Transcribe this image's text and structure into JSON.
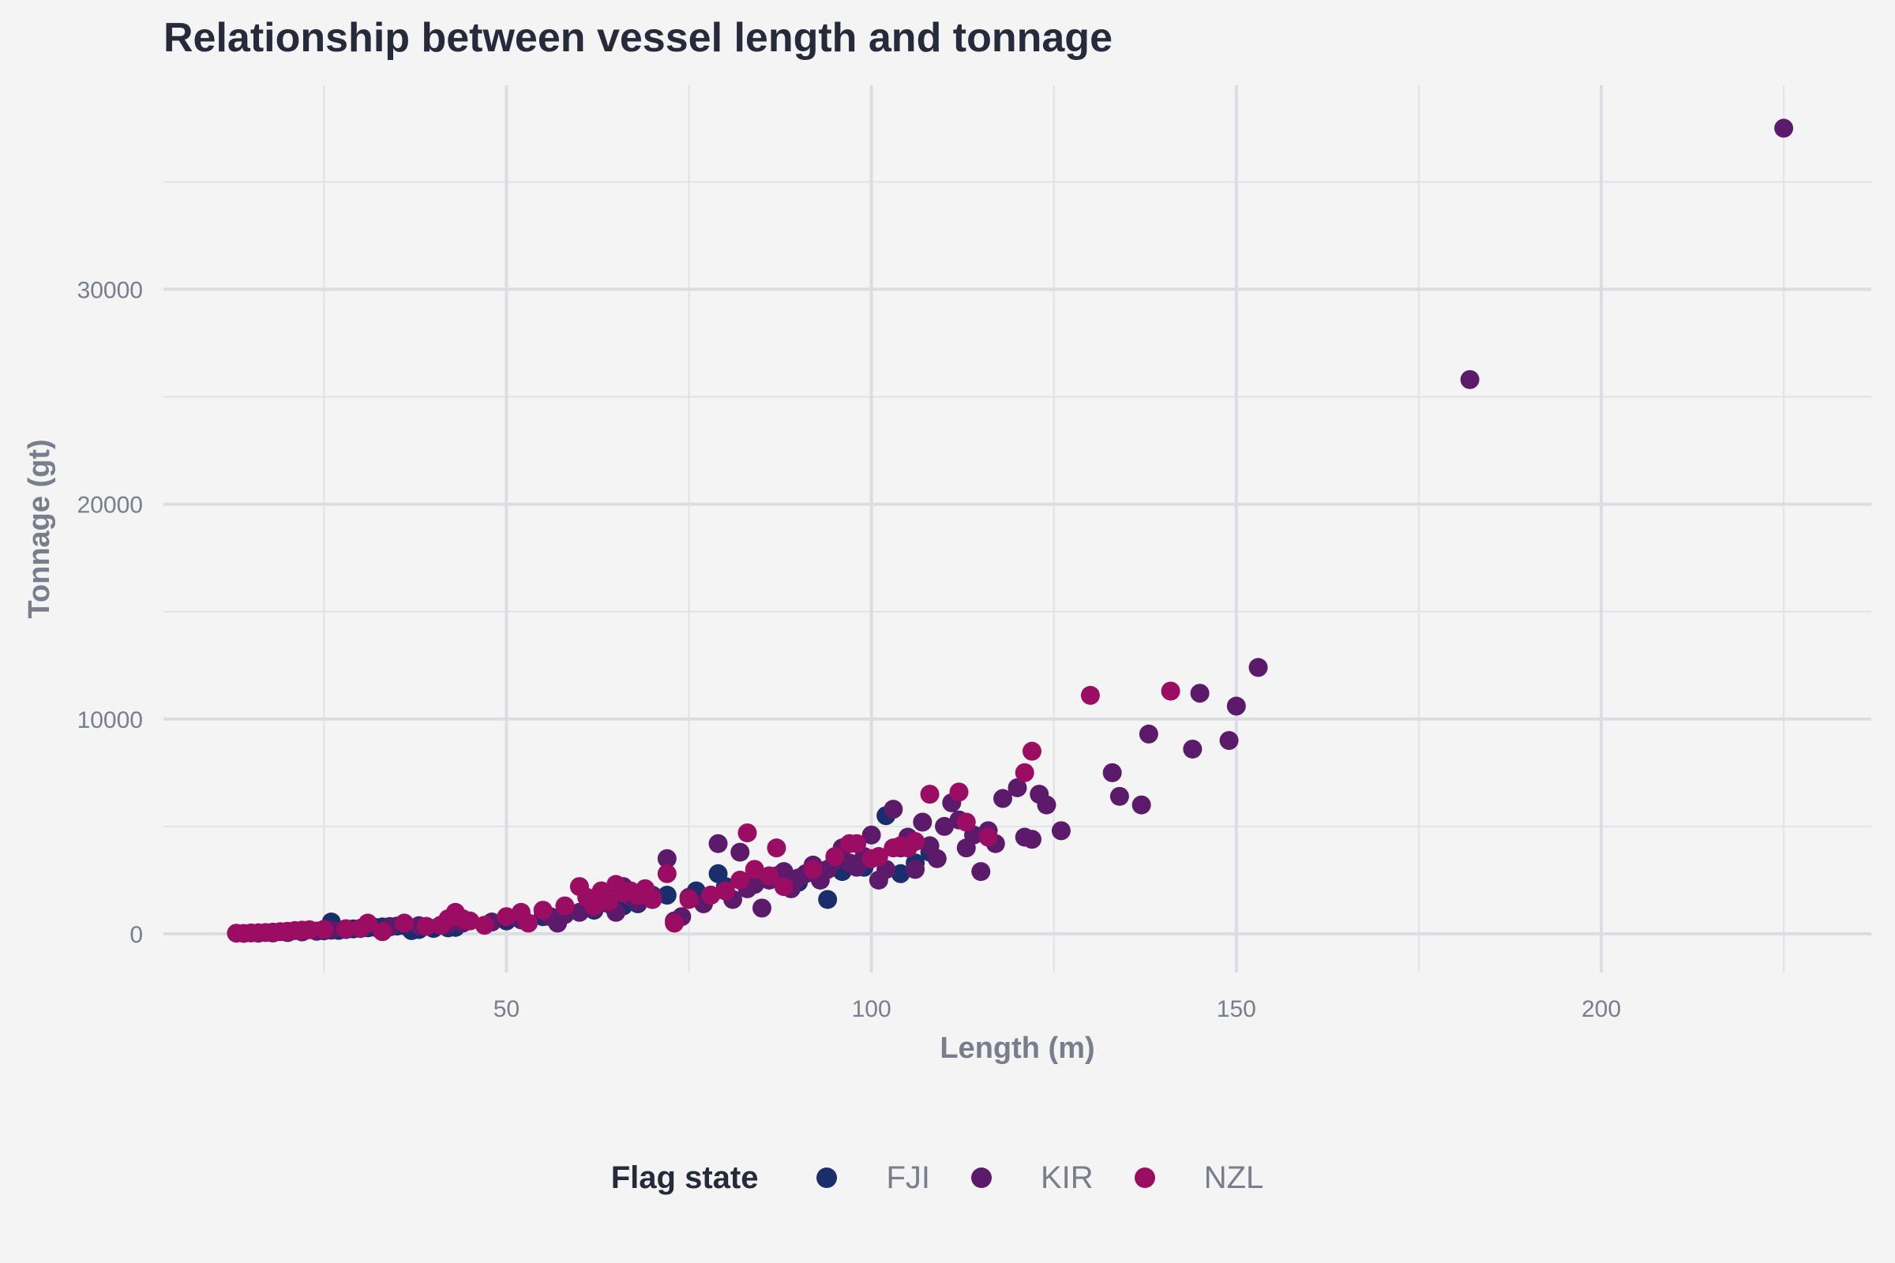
{
  "chart_data": {
    "type": "scatter",
    "title": "Relationship between vessel length and tonnage",
    "xlabel": "Length (m)",
    "ylabel": "Tonnage (gt)",
    "xlim": [
      3,
      237
    ],
    "ylim": [
      -1800,
      39500
    ],
    "x_ticks": [
      50,
      100,
      150,
      200
    ],
    "y_ticks": [
      0,
      10000,
      20000,
      30000
    ],
    "grid": true,
    "legend": {
      "title": "Flag state",
      "position": "bottom"
    },
    "series": [
      {
        "name": "FJI",
        "color": "#1a2e6b",
        "points": [
          [
            16,
            30
          ],
          [
            18,
            40
          ],
          [
            20,
            60
          ],
          [
            22,
            90
          ],
          [
            24,
            120
          ],
          [
            25,
            140
          ],
          [
            26,
            550
          ],
          [
            27,
            160
          ],
          [
            28,
            200
          ],
          [
            29,
            230
          ],
          [
            30,
            250
          ],
          [
            31,
            280
          ],
          [
            32,
            300
          ],
          [
            33,
            320
          ],
          [
            34,
            340
          ],
          [
            35,
            360
          ],
          [
            36,
            380
          ],
          [
            37,
            150
          ],
          [
            38,
            200
          ],
          [
            40,
            250
          ],
          [
            42,
            280
          ],
          [
            43,
            300
          ],
          [
            50,
            600
          ],
          [
            52,
            700
          ],
          [
            55,
            800
          ],
          [
            58,
            900
          ],
          [
            62,
            1100
          ],
          [
            66,
            1300
          ],
          [
            68,
            1400
          ],
          [
            70,
            1600
          ],
          [
            72,
            1800
          ],
          [
            76,
            2000
          ],
          [
            79,
            2800
          ],
          [
            80,
            2200
          ],
          [
            84,
            2500
          ],
          [
            87,
            2600
          ],
          [
            90,
            2400
          ],
          [
            94,
            1600
          ],
          [
            96,
            2900
          ],
          [
            99,
            3100
          ],
          [
            102,
            5500
          ],
          [
            104,
            2800
          ],
          [
            106,
            3300
          ],
          [
            108,
            3800
          ]
        ]
      },
      {
        "name": "KIR",
        "color": "#5c1a6b",
        "points": [
          [
            18,
            50
          ],
          [
            20,
            70
          ],
          [
            22,
            100
          ],
          [
            24,
            130
          ],
          [
            26,
            170
          ],
          [
            28,
            210
          ],
          [
            30,
            250
          ],
          [
            34,
            320
          ],
          [
            38,
            380
          ],
          [
            42,
            450
          ],
          [
            44,
            500
          ],
          [
            48,
            550
          ],
          [
            52,
            650
          ],
          [
            56,
            800
          ],
          [
            57,
            500
          ],
          [
            58,
            950
          ],
          [
            60,
            1000
          ],
          [
            62,
            1200
          ],
          [
            64,
            1400
          ],
          [
            65,
            1000
          ],
          [
            66,
            2200
          ],
          [
            67,
            1700
          ],
          [
            68,
            1500
          ],
          [
            70,
            1800
          ],
          [
            72,
            3500
          ],
          [
            73,
            600
          ],
          [
            74,
            800
          ],
          [
            75,
            1700
          ],
          [
            77,
            1400
          ],
          [
            78,
            1800
          ],
          [
            79,
            4200
          ],
          [
            80,
            2000
          ],
          [
            81,
            1600
          ],
          [
            82,
            3800
          ],
          [
            83,
            2100
          ],
          [
            84,
            2300
          ],
          [
            85,
            1200
          ],
          [
            86,
            2500
          ],
          [
            87,
            2700
          ],
          [
            88,
            2900
          ],
          [
            89,
            2100
          ],
          [
            90,
            2600
          ],
          [
            91,
            2800
          ],
          [
            92,
            3200
          ],
          [
            93,
            2500
          ],
          [
            94,
            3000
          ],
          [
            95,
            3400
          ],
          [
            96,
            4000
          ],
          [
            97,
            3300
          ],
          [
            98,
            3100
          ],
          [
            99,
            3600
          ],
          [
            100,
            4600
          ],
          [
            101,
            2500
          ],
          [
            102,
            3000
          ],
          [
            103,
            5800
          ],
          [
            104,
            4000
          ],
          [
            105,
            4500
          ],
          [
            106,
            3000
          ],
          [
            107,
            5200
          ],
          [
            108,
            4100
          ],
          [
            109,
            3500
          ],
          [
            110,
            5000
          ],
          [
            111,
            6100
          ],
          [
            112,
            5300
          ],
          [
            113,
            4000
          ],
          [
            114,
            4600
          ],
          [
            115,
            2900
          ],
          [
            116,
            4800
          ],
          [
            117,
            4200
          ],
          [
            118,
            6300
          ],
          [
            120,
            6800
          ],
          [
            121,
            4500
          ],
          [
            122,
            4400
          ],
          [
            123,
            6500
          ],
          [
            124,
            6000
          ],
          [
            126,
            4800
          ],
          [
            133,
            7500
          ],
          [
            134,
            6400
          ],
          [
            137,
            6000
          ],
          [
            138,
            9300
          ],
          [
            144,
            8600
          ],
          [
            145,
            11200
          ],
          [
            149,
            9000
          ],
          [
            150,
            10600
          ],
          [
            153,
            12400
          ],
          [
            182,
            25800
          ],
          [
            225,
            37500
          ]
        ]
      },
      {
        "name": "NZL",
        "color": "#9b0d62",
        "points": [
          [
            13,
            30
          ],
          [
            14,
            20
          ],
          [
            15,
            40
          ],
          [
            16,
            50
          ],
          [
            17,
            60
          ],
          [
            18,
            80
          ],
          [
            19,
            100
          ],
          [
            20,
            120
          ],
          [
            21,
            150
          ],
          [
            22,
            170
          ],
          [
            23,
            190
          ],
          [
            25,
            210
          ],
          [
            28,
            240
          ],
          [
            30,
            260
          ],
          [
            31,
            500
          ],
          [
            33,
            100
          ],
          [
            36,
            500
          ],
          [
            39,
            350
          ],
          [
            41,
            400
          ],
          [
            42,
            700
          ],
          [
            43,
            1000
          ],
          [
            44,
            700
          ],
          [
            45,
            600
          ],
          [
            47,
            400
          ],
          [
            50,
            800
          ],
          [
            52,
            1000
          ],
          [
            53,
            500
          ],
          [
            55,
            1100
          ],
          [
            58,
            1300
          ],
          [
            60,
            2200
          ],
          [
            61,
            1700
          ],
          [
            62,
            1300
          ],
          [
            63,
            2000
          ],
          [
            64,
            1500
          ],
          [
            65,
            2300
          ],
          [
            66,
            1900
          ],
          [
            67,
            2000
          ],
          [
            68,
            1800
          ],
          [
            69,
            2100
          ],
          [
            70,
            1600
          ],
          [
            72,
            2800
          ],
          [
            73,
            500
          ],
          [
            75,
            1600
          ],
          [
            78,
            1800
          ],
          [
            80,
            2000
          ],
          [
            82,
            2500
          ],
          [
            83,
            4700
          ],
          [
            84,
            3000
          ],
          [
            86,
            2700
          ],
          [
            87,
            4000
          ],
          [
            88,
            2200
          ],
          [
            92,
            3000
          ],
          [
            95,
            3600
          ],
          [
            97,
            4200
          ],
          [
            98,
            4200
          ],
          [
            100,
            3500
          ],
          [
            101,
            3600
          ],
          [
            103,
            4000
          ],
          [
            104,
            4100
          ],
          [
            105,
            4000
          ],
          [
            106,
            4300
          ],
          [
            108,
            6500
          ],
          [
            112,
            6600
          ],
          [
            113,
            5200
          ],
          [
            116,
            4500
          ],
          [
            121,
            7500
          ],
          [
            122,
            8500
          ],
          [
            130,
            11100
          ],
          [
            141,
            11300
          ]
        ]
      }
    ]
  }
}
